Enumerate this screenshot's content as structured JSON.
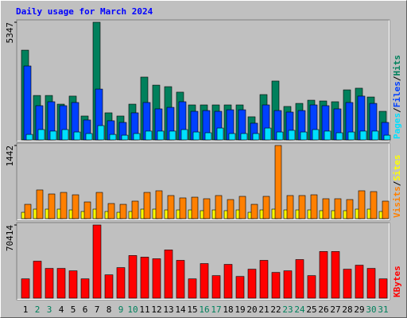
{
  "chart_data": [
    {
      "type": "bar",
      "title": "Daily usage for March 2024",
      "legend_separator": "/",
      "ylim": [
        0,
        5347
      ],
      "yticks": [
        5347
      ],
      "series": [
        {
          "name": "Hits",
          "color": "#00805c",
          "values": [
            4080,
            2020,
            2020,
            1625,
            1990,
            1085,
            5347,
            1230,
            1085,
            1625,
            2855,
            2490,
            2420,
            2170,
            1590,
            1590,
            1590,
            1590,
            1590,
            1050,
            2060,
            2675,
            1520,
            1660,
            1805,
            1770,
            1735,
            2275,
            2350,
            1950,
            1300
          ]
        },
        {
          "name": "Files",
          "color": "#0040ff",
          "values": [
            3360,
            1555,
            1735,
            1555,
            1700,
            905,
            2310,
            870,
            795,
            1230,
            1700,
            1410,
            1480,
            1735,
            1300,
            1335,
            1300,
            1370,
            1370,
            760,
            1590,
            1335,
            1265,
            1335,
            1590,
            1555,
            1410,
            1700,
            1990,
            1660,
            795
          ]
        },
        {
          "name": "Pages",
          "color": "#00e0ff",
          "values": [
            250,
            470,
            400,
            470,
            360,
            290,
            650,
            250,
            215,
            290,
            400,
            400,
            400,
            470,
            360,
            325,
            540,
            290,
            290,
            290,
            540,
            360,
            435,
            360,
            470,
            400,
            325,
            360,
            400,
            400,
            215
          ]
        }
      ]
    },
    {
      "type": "bar",
      "legend_separator": "/",
      "ylim": [
        0,
        1442
      ],
      "yticks": [
        1442
      ],
      "series": [
        {
          "name": "Sites",
          "color": "#ffff00",
          "values": [
            125,
            188,
            188,
            188,
            172,
            141,
            188,
            141,
            125,
            141,
            188,
            188,
            172,
            172,
            172,
            157,
            172,
            157,
            172,
            125,
            172,
            188,
            172,
            172,
            172,
            157,
            157,
            157,
            188,
            188,
            141
          ]
        },
        {
          "name": "Visits",
          "color": "#ff8000",
          "values": [
            282,
            565,
            486,
            517,
            470,
            329,
            517,
            298,
            282,
            345,
            517,
            549,
            455,
            408,
            423,
            392,
            455,
            376,
            439,
            282,
            439,
            1442,
            455,
            455,
            470,
            392,
            392,
            376,
            549,
            533,
            345
          ]
        }
      ]
    },
    {
      "type": "bar",
      "ylim": [
        0,
        70414
      ],
      "yticks": [
        70414
      ],
      "categories": [
        "1",
        "2",
        "3",
        "4",
        "5",
        "6",
        "7",
        "8",
        "9",
        "10",
        "11",
        "12",
        "13",
        "14",
        "15",
        "16",
        "17",
        "18",
        "19",
        "20",
        "21",
        "22",
        "23",
        "24",
        "25",
        "26",
        "27",
        "28",
        "29",
        "30",
        "31"
      ],
      "category_colors": [
        "#000000",
        "#00805c",
        "#00805c",
        "#000000",
        "#000000",
        "#000000",
        "#000000",
        "#000000",
        "#00805c",
        "#00805c",
        "#000000",
        "#000000",
        "#000000",
        "#000000",
        "#000000",
        "#00805c",
        "#00805c",
        "#000000",
        "#000000",
        "#000000",
        "#000000",
        "#000000",
        "#00805c",
        "#00805c",
        "#000000",
        "#000000",
        "#000000",
        "#000000",
        "#000000",
        "#00805c",
        "#00805c"
      ],
      "series": [
        {
          "name": "KBytes",
          "color": "#ff0000",
          "values": [
            18570,
            35590,
            28630,
            28630,
            26310,
            18570,
            70414,
            22440,
            29400,
            41010,
            39460,
            37910,
            46430,
            36370,
            18570,
            33270,
            21670,
            32500,
            20890,
            27860,
            36370,
            24760,
            26310,
            37140,
            21670,
            44880,
            44880,
            27860,
            31720,
            28630,
            18570
          ]
        }
      ]
    }
  ]
}
